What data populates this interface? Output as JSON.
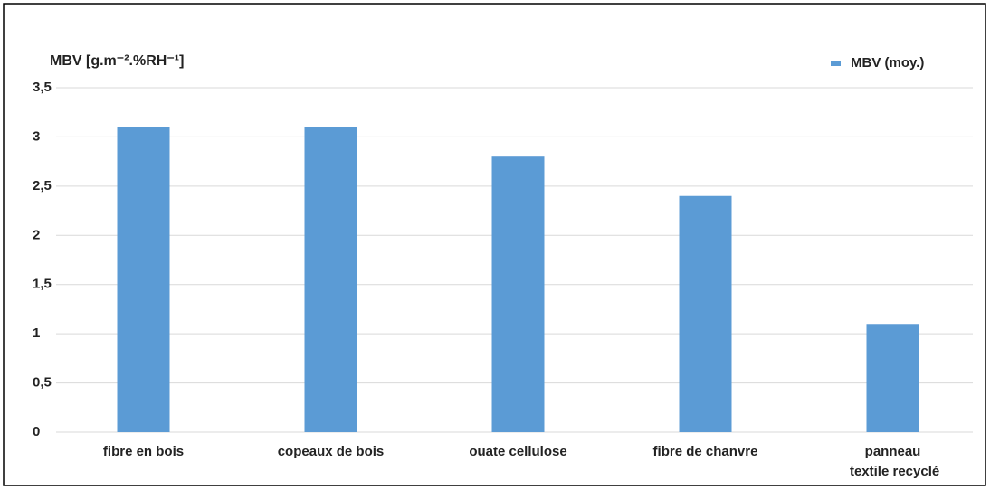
{
  "chart_data": {
    "type": "bar",
    "y_label": "MBV [g.m⁻².%RH⁻¹]",
    "categories": [
      "fibre en bois",
      "copeaux de bois",
      "ouate cellulose",
      "fibre de chanvre",
      "panneau textile recyclé"
    ],
    "series": [
      {
        "name": "MBV (moy.)",
        "color": "#5b9bd5",
        "values": [
          3.1,
          3.1,
          2.8,
          2.4,
          1.1
        ]
      }
    ],
    "ylim": [
      0,
      3.5
    ],
    "yticks": [
      0,
      {
        "value": 0.5,
        "label": "0,5"
      },
      1,
      {
        "value": 1.5,
        "label": "1,5"
      },
      2,
      {
        "value": 2.5,
        "label": "2,5"
      },
      3,
      {
        "value": 3.5,
        "label": "3,5"
      }
    ],
    "grid": true,
    "legend": "top-right"
  }
}
